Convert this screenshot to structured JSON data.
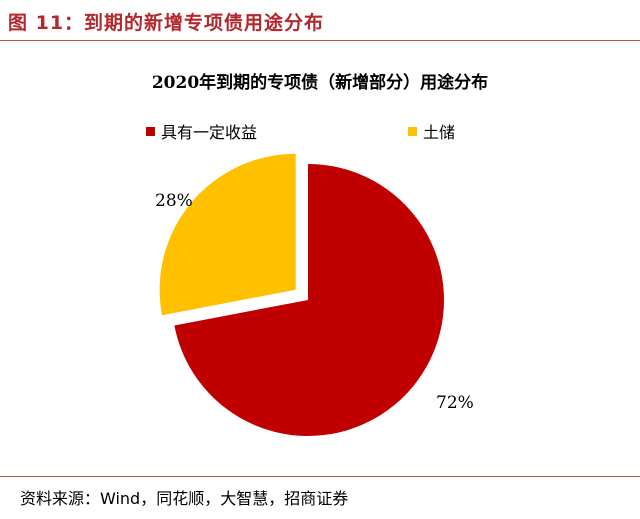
{
  "figure": {
    "title": "图 11：到期的新增专项债用途分布",
    "source": "资料来源：Wind，同花顺，大智慧，招商证券"
  },
  "colors": {
    "header_red": "#b3272d",
    "slice_red": "#c00000",
    "slice_gold": "#ffc000"
  },
  "chart_data": {
    "type": "pie",
    "title": "2020年到期的专项债（新增部分）用途分布",
    "slices": [
      {
        "label": "具有一定收益",
        "value": 72,
        "display": "72%",
        "color": "#c00000"
      },
      {
        "label": "土储",
        "value": 28,
        "display": "28%",
        "color": "#ffc000",
        "exploded": true
      }
    ],
    "legend_position": "top"
  }
}
